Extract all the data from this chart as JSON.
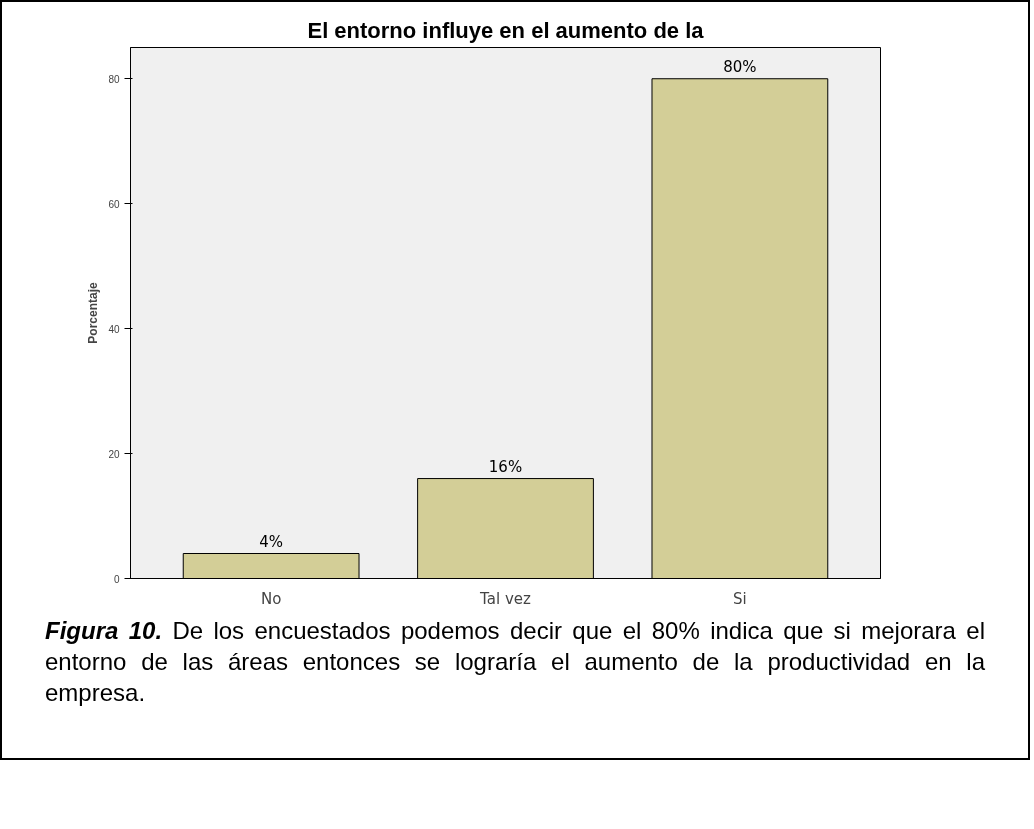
{
  "chart_data": {
    "type": "bar",
    "title": "El entorno influye en el aumento de la",
    "ylabel": "Porcentaje",
    "categories": [
      "No",
      "Tal vez",
      "Si"
    ],
    "values": [
      4,
      16,
      80
    ],
    "color": "#d3ce97",
    "value_labels": [
      "4%",
      "16%",
      "80%"
    ],
    "ylim": [
      0,
      85
    ],
    "yticks": [
      0,
      20,
      40,
      60,
      80
    ],
    "grid": false,
    "annotations": [
      "Figura 10.",
      "De los encuestados podemos decir que el 80% indica que si mejorara el entorno de las áreas entonces se lograría el aumento de la productividad en la empresa."
    ]
  }
}
